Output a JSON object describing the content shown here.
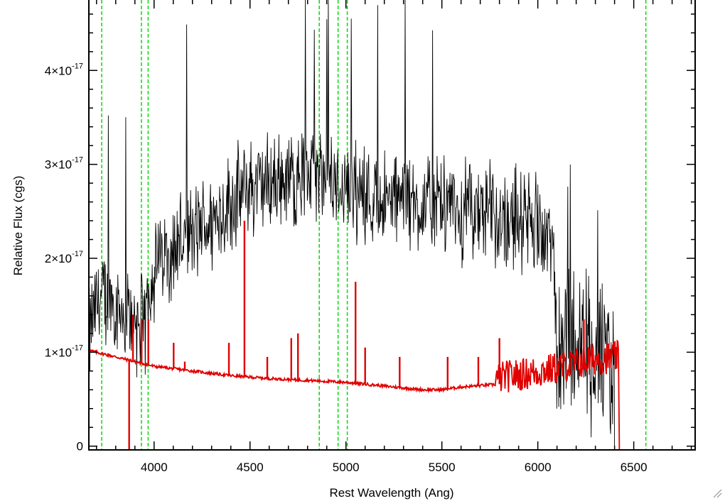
{
  "chart_data": {
    "type": "line",
    "title": "",
    "xlabel": "Rest Wavelength (Ang)",
    "ylabel": "Relative Flux (cgs)",
    "xlim": [
      3660,
      6820
    ],
    "ylim": [
      -0.04,
      4.75
    ],
    "y_multiplier_note": "y values in units of 1e-17",
    "x_ticks": [
      4000,
      4500,
      5000,
      5500,
      6000,
      6500
    ],
    "x_tick_labels": [
      "4000",
      "4500",
      "5000",
      "5500",
      "6000",
      "6500"
    ],
    "y_ticks": [
      0,
      1,
      2,
      3,
      4
    ],
    "y_tick_labels": [
      {
        "base": "0",
        "sup": ""
      },
      {
        "base": "1×10",
        "sup": "-17"
      },
      {
        "base": "2×10",
        "sup": "-17"
      },
      {
        "base": "3×10",
        "sup": "-17"
      },
      {
        "base": "4×10",
        "sup": "-17"
      }
    ],
    "grid": false,
    "series": [
      {
        "role": "observed spectrum",
        "color": "#000000",
        "points": [
          [
            3660,
            1.15
          ],
          [
            3700,
            1.5
          ],
          [
            3750,
            1.6
          ],
          [
            3800,
            1.55
          ],
          [
            3850,
            1.4
          ],
          [
            3900,
            1.35
          ],
          [
            3950,
            1.25
          ],
          [
            3980,
            1.8
          ],
          [
            4050,
            2.05
          ],
          [
            4100,
            2.15
          ],
          [
            4200,
            2.25
          ],
          [
            4300,
            2.4
          ],
          [
            4400,
            2.6
          ],
          [
            4500,
            2.75
          ],
          [
            4600,
            2.8
          ],
          [
            4700,
            2.85
          ],
          [
            4800,
            2.9
          ],
          [
            4900,
            2.85
          ],
          [
            5000,
            2.8
          ],
          [
            5100,
            2.7
          ],
          [
            5200,
            2.6
          ],
          [
            5300,
            2.6
          ],
          [
            5400,
            2.55
          ],
          [
            5500,
            2.55
          ],
          [
            5600,
            2.5
          ],
          [
            5700,
            2.5
          ],
          [
            5800,
            2.45
          ],
          [
            5900,
            2.45
          ],
          [
            6000,
            2.4
          ],
          [
            6080,
            2.1
          ],
          [
            6100,
            1.2
          ],
          [
            6200,
            1.1
          ],
          [
            6300,
            0.95
          ],
          [
            6400,
            0.8
          ],
          [
            6410,
            -0.04
          ]
        ]
      },
      {
        "role": "model continuum",
        "color": "#e00000",
        "points": [
          [
            3660,
            1.02
          ],
          [
            3800,
            0.95
          ],
          [
            4000,
            0.85
          ],
          [
            4200,
            0.8
          ],
          [
            4400,
            0.75
          ],
          [
            4600,
            0.72
          ],
          [
            4800,
            0.7
          ],
          [
            5000,
            0.68
          ],
          [
            5200,
            0.64
          ],
          [
            5400,
            0.6
          ],
          [
            5500,
            0.6
          ],
          [
            5600,
            0.63
          ],
          [
            5800,
            0.66
          ],
          [
            6000,
            0.72
          ],
          [
            6100,
            0.76
          ],
          [
            6300,
            0.86
          ],
          [
            6420,
            0.88
          ],
          [
            6425,
            -0.04
          ],
          [
            6820,
            -0.04
          ]
        ],
        "emission_lines": [
          {
            "x": 3870,
            "peak": -0.04
          },
          {
            "x": 3890,
            "peak": 1.4
          },
          {
            "x": 3935,
            "peak": 1.35
          },
          {
            "x": 3970,
            "peak": 1.35
          },
          {
            "x": 4102,
            "peak": 1.1
          },
          {
            "x": 4160,
            "peak": 0.9
          },
          {
            "x": 4390,
            "peak": 1.1
          },
          {
            "x": 4471,
            "peak": 2.4
          },
          {
            "x": 4590,
            "peak": 0.95
          },
          {
            "x": 4715,
            "peak": 1.15
          },
          {
            "x": 4750,
            "peak": 1.2
          },
          {
            "x": 5050,
            "peak": 1.75
          },
          {
            "x": 5100,
            "peak": 1.05
          },
          {
            "x": 5280,
            "peak": 0.95
          },
          {
            "x": 5530,
            "peak": 0.95
          },
          {
            "x": 5690,
            "peak": 0.95
          },
          {
            "x": 5800,
            "peak": 1.15
          },
          {
            "x": 6240,
            "peak": 1.35
          }
        ]
      }
    ],
    "vertical_markers": {
      "color": "#00dd00",
      "style": "dashed",
      "x": [
        3727,
        3934,
        3969,
        4861,
        4959,
        5007,
        6563
      ]
    }
  }
}
